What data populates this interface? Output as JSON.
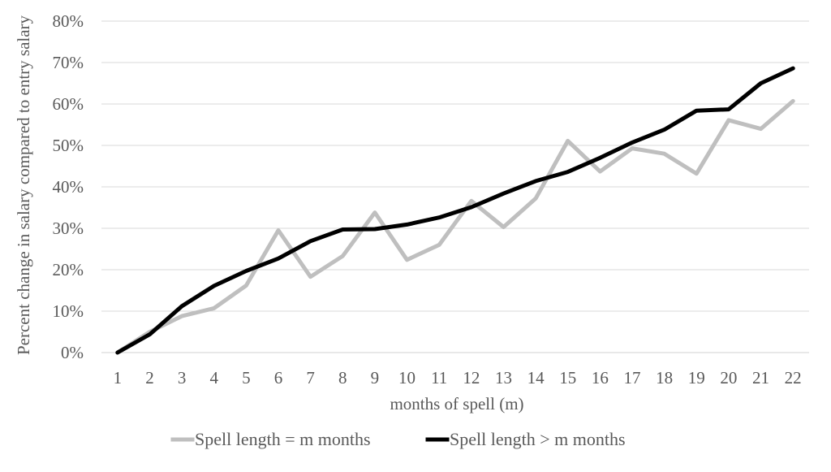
{
  "chart_data": {
    "type": "line",
    "title": "",
    "xlabel": "months of spell (m)",
    "ylabel": "Percent change in salary compared to entry salary",
    "categories": [
      1,
      2,
      3,
      4,
      5,
      6,
      7,
      8,
      9,
      10,
      11,
      12,
      13,
      14,
      15,
      16,
      17,
      18,
      19,
      20,
      21,
      22
    ],
    "ylim": [
      0,
      80
    ],
    "y_ticks": [
      0,
      10,
      20,
      30,
      40,
      50,
      60,
      70,
      80
    ],
    "y_tick_labels": [
      "0%",
      "10%",
      "20%",
      "30%",
      "40%",
      "50%",
      "60%",
      "70%",
      "80%"
    ],
    "grid": true,
    "legend_position": "bottom",
    "series": [
      {
        "name": "Spell length = m months",
        "color": "#bfbfbf",
        "values": [
          0,
          5,
          8.8,
          10.7,
          16.2,
          29.5,
          18.3,
          23.3,
          33.8,
          22.4,
          26,
          36.6,
          30.3,
          37.2,
          51.1,
          43.7,
          49.3,
          48,
          43.2,
          56.1,
          54,
          60.7
        ]
      },
      {
        "name": "Spell length > m months",
        "color": "#000000",
        "values": [
          0,
          4.4,
          11.2,
          16.1,
          19.7,
          22.7,
          26.9,
          29.7,
          29.8,
          30.9,
          32.6,
          35.1,
          38.4,
          41.4,
          43.6,
          47,
          50.7,
          53.8,
          58.4,
          58.7,
          65,
          68.6
        ]
      }
    ]
  }
}
